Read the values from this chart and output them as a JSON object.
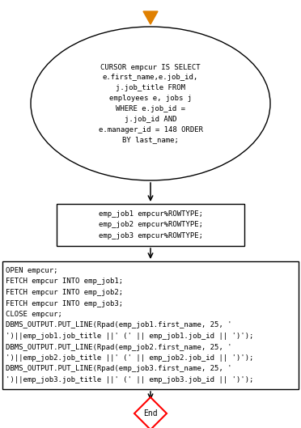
{
  "bg_color": "#ffffff",
  "arrow_color": "#000000",
  "start_arrow_color": "#e08000",
  "ellipse_text": "CURSOR empcur IS SELECT\ne.first_name,e.job_id,\nj.job_title FROM\nemployees e, jobs j\nWHERE e.job_id =\nj.job_id AND\ne.manager_id = 148 ORDER\nBY last_name;",
  "rect1_text": "emp_job1 empcur%ROWTYPE;\nemp_job2 empcur%ROWTYPE;\nemp_job3 empcur%ROWTYPE;",
  "rect2_lines": [
    "OPEN empcur;",
    "FETCH empcur INTO emp_job1;",
    "FETCH empcur INTO emp_job2;",
    "FETCH empcur INTO emp_job3;",
    "CLOSE empcur;",
    "DBMS_OUTPUT.PUT_LINE(Rpad(emp_job1.first_name, 25, '",
    "')||emp_job1.job_title ||' (' || emp_job1.job_id || ')');",
    "DBMS_OUTPUT.PUT_LINE(Rpad(emp_job2.first_name, 25, '",
    "')||emp_job2.job_title ||' (' || emp_job2.job_id || ')');",
    "DBMS_OUTPUT.PUT_LINE(Rpad(emp_job3.first_name, 25, '",
    "')||emp_job3.job_title ||' (' || emp_job3.job_id || ')');"
  ],
  "end_text": "End",
  "font_size": 6.5,
  "font_family": "monospace",
  "ellipse_fill": "#ffffff",
  "ellipse_edge": "#000000",
  "rect_fill": "#ffffff",
  "rect_edge": "#000000",
  "end_fill": "#ffffff",
  "end_edge": "#ff0000",
  "fig_w": 3.72,
  "fig_h": 5.29,
  "dpi": 100
}
